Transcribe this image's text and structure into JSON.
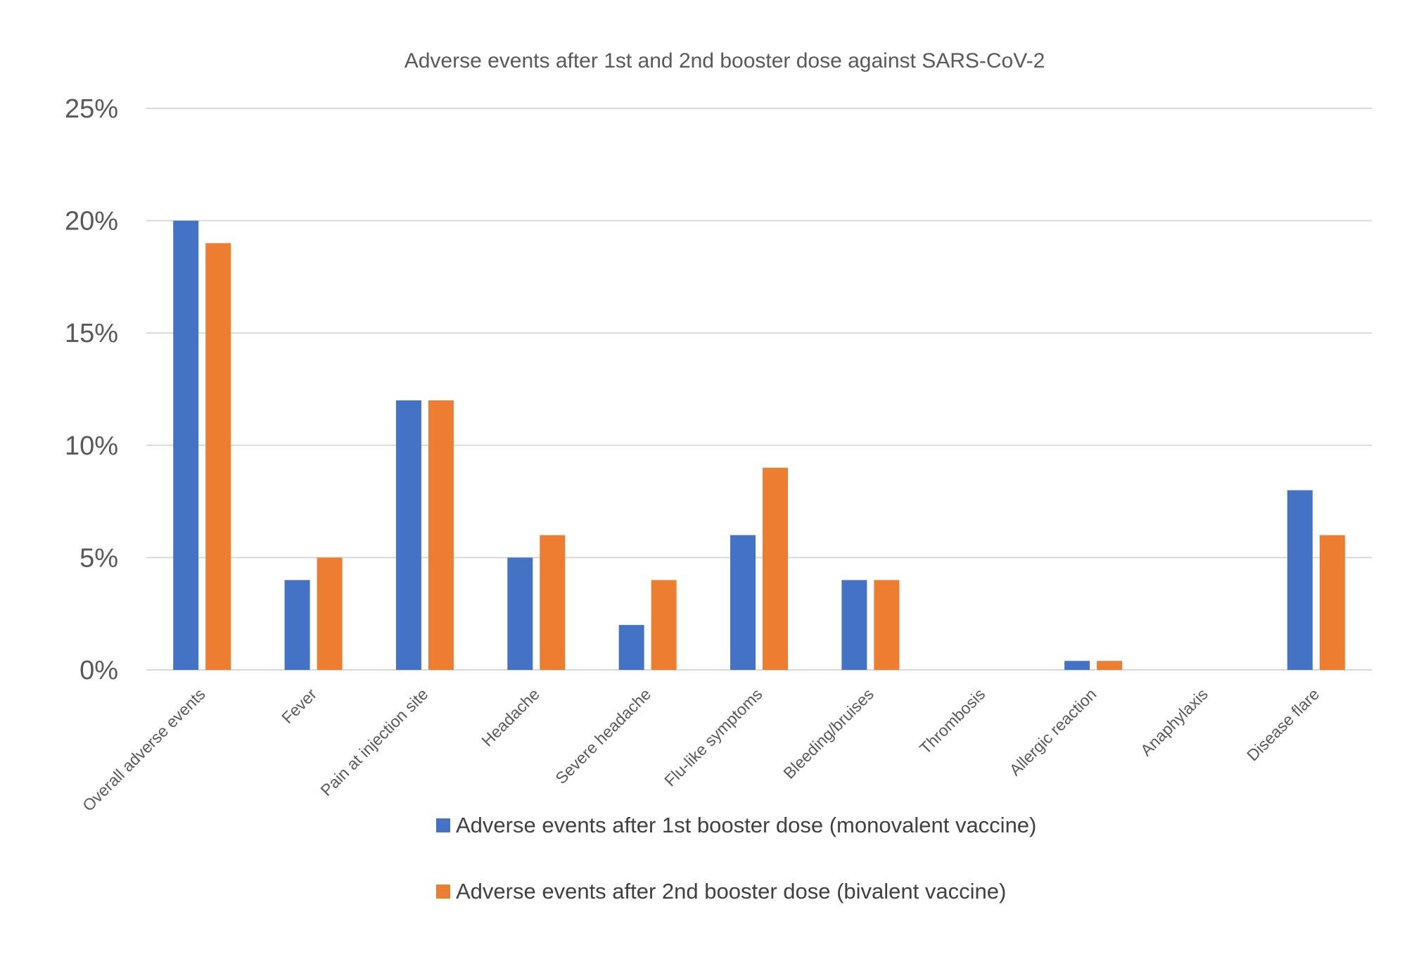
{
  "chart_data": {
    "type": "bar",
    "title": "Adverse events after 1st and 2nd booster dose against SARS-CoV-2",
    "xlabel": "",
    "ylabel": "",
    "ylim": [
      0,
      25
    ],
    "y_ticks": [
      0,
      5,
      10,
      15,
      20,
      25
    ],
    "y_tick_labels": [
      "0%",
      "5%",
      "10%",
      "15%",
      "20%",
      "25%"
    ],
    "y_unit": "%",
    "grid": true,
    "legend_position": "bottom",
    "categories": [
      "Overall adverse events",
      "Fever",
      "Pain at injection site",
      "Headache",
      "Severe headache",
      "Flu-like symptoms",
      "Bleeding/bruises",
      "Thrombosis",
      "Allergic reaction",
      "Anaphylaxis",
      "Disease flare"
    ],
    "series": [
      {
        "name": "Adverse events after 1st booster dose (monovalent vaccine)",
        "color": "#4472c4",
        "values": [
          20,
          4,
          12,
          5,
          2,
          6,
          4,
          0,
          0.4,
          0,
          8
        ]
      },
      {
        "name": "Adverse events after 2nd booster dose (bivalent vaccine)",
        "color": "#ed7d31",
        "values": [
          19,
          5,
          12,
          6,
          4,
          9,
          4,
          0,
          0.4,
          0,
          6
        ]
      }
    ]
  }
}
